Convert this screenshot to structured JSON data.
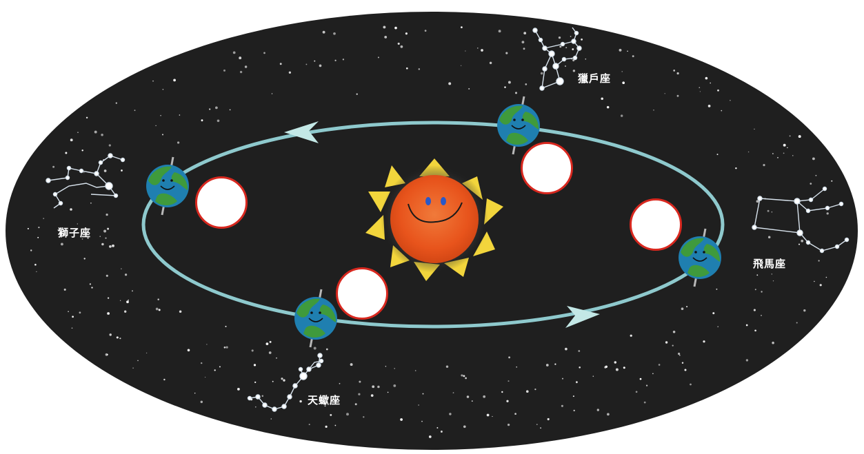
{
  "constellations": {
    "leo": "獅子座",
    "orion": "獵戶座",
    "pegasus": "飛馬座",
    "scorpius": "天蠍座"
  },
  "colors": {
    "sky": "#1f1f1f",
    "orbit": "#8ec9cd",
    "sun_core": "#e8541c",
    "sun_rays": "#f2d53c",
    "earth_ocean": "#1f7fb0",
    "earth_land": "#3f9a3c",
    "circle_border": "#d8281f"
  },
  "icons": {
    "sun": "smiling-sun-icon",
    "earth": "smiling-earth-icon",
    "arrow": "orbit-direction-arrow-icon"
  }
}
